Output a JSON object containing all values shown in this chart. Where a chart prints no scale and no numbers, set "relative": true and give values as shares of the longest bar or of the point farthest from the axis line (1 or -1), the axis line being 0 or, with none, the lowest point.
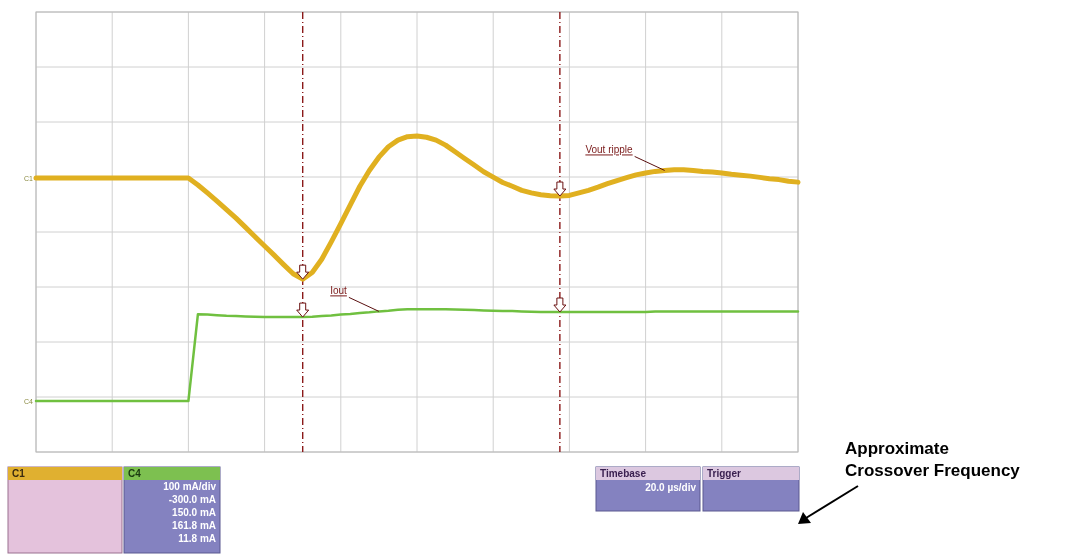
{
  "chart_data": {
    "type": "line",
    "relative": true,
    "grid": true,
    "legend": false,
    "marker": "none",
    "categories": [
      null,
      null,
      null,
      null,
      null,
      null,
      null,
      null,
      null,
      null,
      null,
      null,
      null,
      null,
      null,
      null,
      null,
      null,
      null,
      null,
      null,
      null,
      null,
      null,
      null,
      null,
      null,
      null,
      null,
      null,
      null,
      null,
      null,
      null,
      null,
      null,
      null,
      null,
      null,
      null,
      null,
      null,
      null,
      null,
      null,
      null,
      null,
      null,
      null,
      null,
      null,
      null,
      null,
      null,
      null,
      null,
      null,
      null,
      null,
      null,
      null,
      null,
      null,
      null,
      null,
      null,
      null,
      null,
      null,
      null,
      null,
      null,
      null,
      null,
      null,
      null,
      null,
      null,
      null,
      null,
      null
    ],
    "series": [
      {
        "name": "Vout ripple",
        "color": "#e0b020",
        "values": [
          0.867,
          0.867,
          0.867,
          0.867,
          0.867,
          0.867,
          0.867,
          0.867,
          0.867,
          0.867,
          0.867,
          0.867,
          0.867,
          0.867,
          0.867,
          0.867,
          0.867,
          0.845,
          0.82,
          0.794,
          0.767,
          0.74,
          0.711,
          0.681,
          0.652,
          0.623,
          0.593,
          0.564,
          0.547,
          0.568,
          0.61,
          0.665,
          0.723,
          0.782,
          0.841,
          0.891,
          0.933,
          0.966,
          0.987,
          0.998,
          1.0,
          0.996,
          0.987,
          0.971,
          0.95,
          0.929,
          0.908,
          0.887,
          0.87,
          0.853,
          0.841,
          0.828,
          0.82,
          0.814,
          0.811,
          0.81,
          0.812,
          0.82,
          0.828,
          0.838,
          0.849,
          0.859,
          0.868,
          0.877,
          0.883,
          0.888,
          0.891,
          0.893,
          0.893,
          0.891,
          0.888,
          0.886,
          0.883,
          0.879,
          0.876,
          0.873,
          0.869,
          0.865,
          0.862,
          0.857,
          0.854
        ]
      },
      {
        "name": "Iout",
        "color": "#70c040",
        "values": [
          0.161,
          0.161,
          0.161,
          0.161,
          0.161,
          0.161,
          0.161,
          0.161,
          0.161,
          0.161,
          0.161,
          0.161,
          0.161,
          0.161,
          0.161,
          0.161,
          0.161,
          0.436,
          0.435,
          0.433,
          0.431,
          0.43,
          0.429,
          0.428,
          0.427,
          0.427,
          0.427,
          0.427,
          0.427,
          0.428,
          0.43,
          0.432,
          0.435,
          0.437,
          0.44,
          0.442,
          0.445,
          0.447,
          0.45,
          0.452,
          0.452,
          0.452,
          0.452,
          0.452,
          0.451,
          0.45,
          0.449,
          0.448,
          0.447,
          0.446,
          0.446,
          0.445,
          0.444,
          0.443,
          0.443,
          0.443,
          0.443,
          0.443,
          0.443,
          0.443,
          0.443,
          0.443,
          0.443,
          0.443,
          0.443,
          0.445,
          0.445,
          0.445,
          0.445,
          0.445,
          0.445,
          0.445,
          0.445,
          0.445,
          0.445,
          0.445,
          0.445,
          0.445,
          0.445,
          0.445,
          0.445
        ]
      }
    ],
    "annotations": [
      "C1",
      "C4",
      "Approximate Crossover Frequency",
      "C1",
      "C4",
      "100 mA/div",
      "-300.0 mA",
      "150.0 mA",
      "161.8 mA",
      "11.8 mA",
      "Timebase",
      "20.0 µs/div",
      "Trigger"
    ]
  }
}
